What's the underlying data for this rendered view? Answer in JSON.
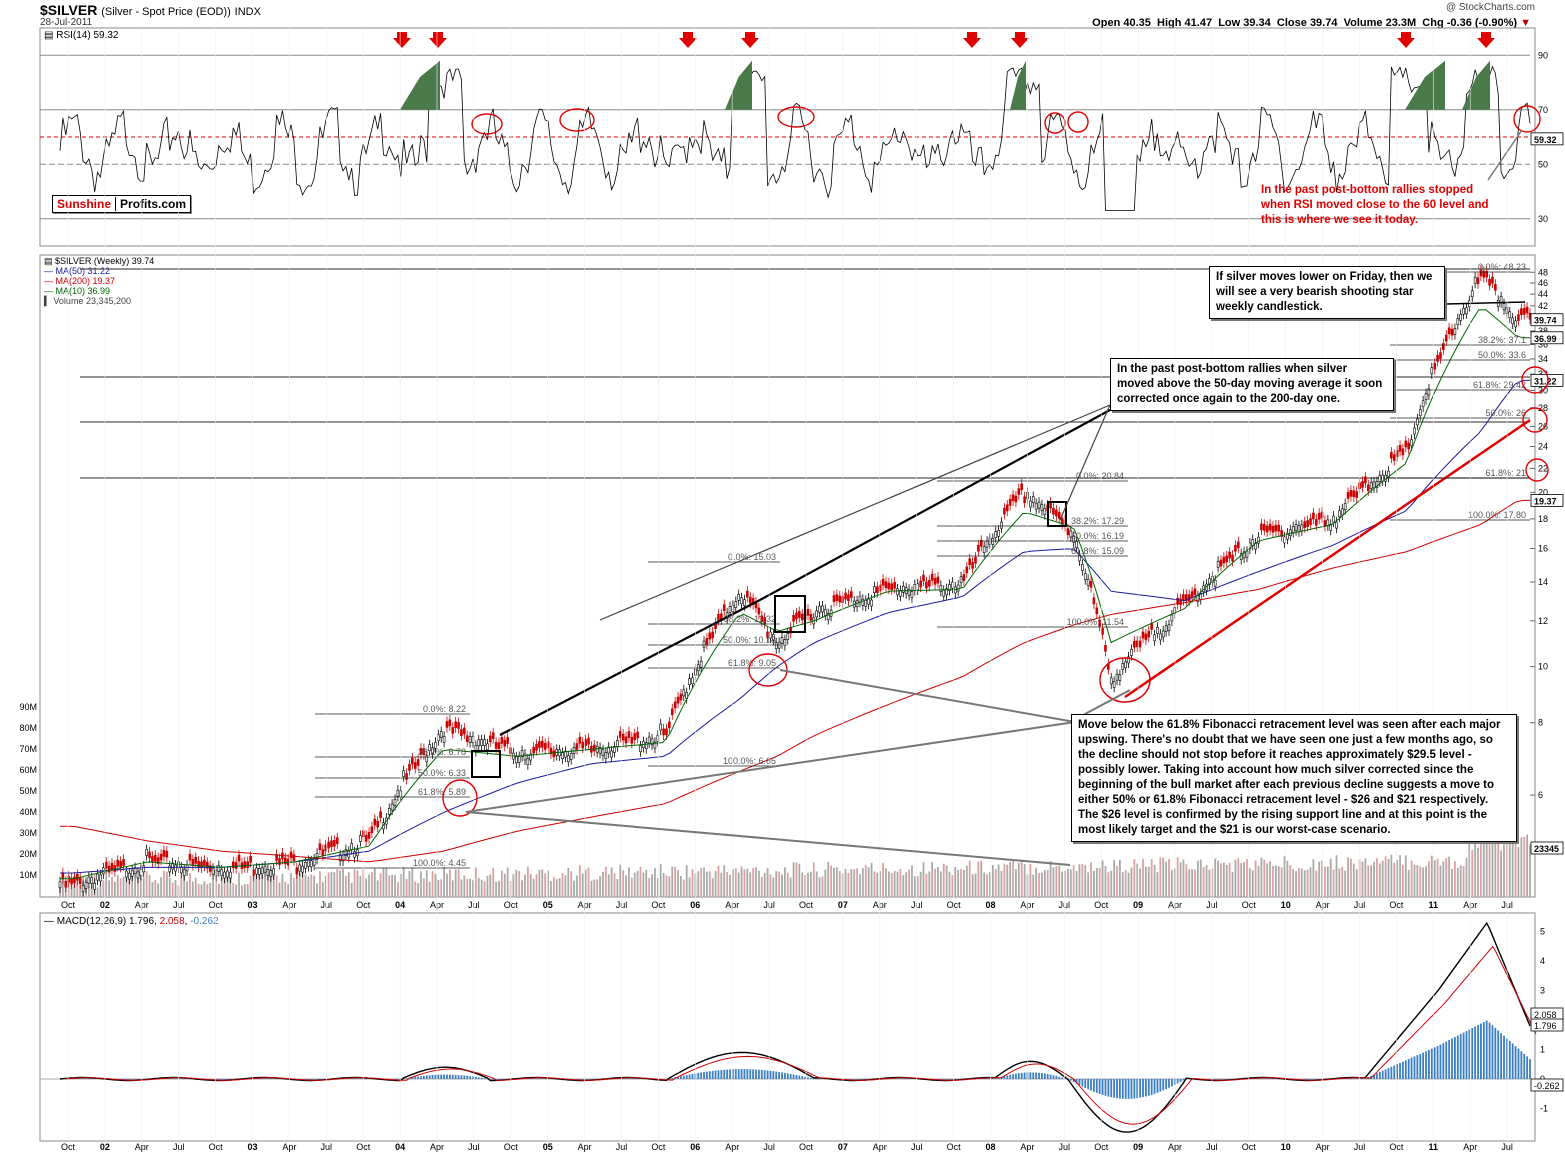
{
  "header": {
    "symbol": "$SILVER",
    "symbol_desc": "(Silver - Spot Price (EOD))",
    "exchange": "INDX",
    "date": "28-Jul-2011",
    "credit": "@ StockCharts.com",
    "open_label": "Open",
    "open": "40.35",
    "high_label": "High",
    "high": "41.47",
    "low_label": "Low",
    "low": "39.34",
    "close_label": "Close",
    "close": "39.74",
    "volume_label": "Volume",
    "volume": "23.3M",
    "chg_label": "Chg",
    "chg": "-0.36 (-0.90%)",
    "chg_icon": "down-triangle-icon"
  },
  "rsi_panel": {
    "label": "RSI(14) 59.32",
    "current_value": "59.32",
    "ticks": [
      "90",
      "70",
      "50",
      "30"
    ]
  },
  "logo": {
    "part1": "Sunshine",
    "part2": "Profits.com"
  },
  "price_panel": {
    "legend": [
      {
        "text": "$SILVER (Weekly) 39.74",
        "color": "#000000"
      },
      {
        "text": "MA(50) 31.22",
        "color": "#1a1a9c"
      },
      {
        "text": "MA(200) 19.37",
        "color": "#cc0000"
      },
      {
        "text": "MA(10) 36.99",
        "color": "#006600"
      },
      {
        "text": "Volume 23,345,200",
        "color": "#444444"
      }
    ],
    "right_ticks": [
      "48",
      "46",
      "44",
      "42",
      "40",
      "38",
      "36",
      "34",
      "32",
      "30",
      "28",
      "26",
      "24",
      "22",
      "20",
      "18",
      "16",
      "14",
      "12",
      "10",
      "8",
      "6"
    ],
    "right_value_labels": [
      "39.74",
      "36.99",
      "31.22",
      "19.37",
      "23345"
    ],
    "volume_ticks": [
      "90M",
      "80M",
      "70M",
      "60M",
      "50M",
      "40M",
      "30M",
      "20M",
      "10M"
    ],
    "fib_labels": [
      "0.0%: 8.22",
      "38.2%: 6.78",
      "50.0%: 6.33",
      "61.8%: 5.89",
      "100.0%: 4.45",
      "0.0%: 15.03",
      "38.2%: 11.32",
      "50.0%: 10.18",
      "61.8%: 9.05",
      "100.0%: 6.65",
      "0.0%: 20.84",
      "38.2%: 17.29",
      "50.0%: 16.19",
      "61.8%: 15.09",
      "100.0%: 11.54",
      "0.0%: 48.23",
      "38.2%: 37.1",
      "50.0%: 33.6",
      "61.8%: 29.42",
      "50.0%: 26",
      "61.8%: 21",
      "100.0%: 17.80"
    ]
  },
  "macd_panel": {
    "label": "MACD(12,26,9)",
    "macd": "1.796",
    "signal": "2.058",
    "hist": "-0.262",
    "ticks": [
      "5",
      "4",
      "3",
      "2",
      "1",
      "0",
      "-1"
    ]
  },
  "x_axis": [
    "Oct",
    "02",
    "Apr",
    "Jul",
    "Oct",
    "03",
    "Apr",
    "Jul",
    "Oct",
    "04",
    "Apr",
    "Jul",
    "Oct",
    "05",
    "Apr",
    "Jul",
    "Oct",
    "06",
    "Apr",
    "Jul",
    "Oct",
    "07",
    "Apr",
    "Jul",
    "Oct",
    "08",
    "Apr",
    "Jul",
    "Oct",
    "09",
    "Apr",
    "Jul",
    "Oct",
    "10",
    "Apr",
    "Jul",
    "Oct",
    "11",
    "Apr",
    "Jul"
  ],
  "annotations": {
    "rsi_note": "In the past post-bottom rallies stopped when RSI moved close to the 60 level and this is where we see it today.",
    "friday_note": "If silver moves lower on Friday, then we will see a very bearish shooting star weekly candlestick.",
    "ma_note": "In the past post-bottom rallies when silver moved above the 50-day moving average it soon corrected once again to the 200-day one.",
    "fib_note": "Move below the 61.8% Fibonacci retracement level was seen after each major upswing. There's no doubt that we have seen one just a few months ago, so the decline should not stop before it reaches approximately $29.5 level - possibly lower. Taking into account how much silver corrected since the beginning of the bull market after each previous decline suggests a move to either 50% or 61.8% Fibonacci retracement level - $26 and $21 respectively. The $26 level is confirmed by the rising support line and at this point is the most likely target and the $21 is our worst-case scenario."
  },
  "colors": {
    "price_up": "#000000",
    "price_down": "#cc0000",
    "ma50": "#1a1a9c",
    "ma200": "#cc0000",
    "ma10": "#006600",
    "rsi_fill": "#4a7a4a",
    "macd_hist": "#3b7fc4",
    "annotation_red": "#e00000"
  },
  "chart_data": {
    "type": "line",
    "title": "$SILVER (Silver - Spot Price (EOD)) INDX",
    "x": [
      "2001-10",
      "2002-04",
      "2002-10",
      "2003-04",
      "2003-10",
      "2004-04",
      "2004-10",
      "2005-04",
      "2005-10",
      "2006-04",
      "2006-07",
      "2006-10",
      "2007-04",
      "2007-10",
      "2008-03",
      "2008-07",
      "2008-10",
      "2009-04",
      "2009-10",
      "2010-04",
      "2010-10",
      "2011-04",
      "2011-07"
    ],
    "series": [
      {
        "name": "$SILVER (Weekly)",
        "values": [
          4.2,
          4.6,
          4.5,
          4.6,
          5.0,
          7.8,
          7.1,
          7.2,
          7.6,
          13.5,
          11.0,
          12.5,
          13.6,
          13.9,
          20.0,
          17.0,
          9.5,
          12.8,
          16.8,
          18.0,
          23.5,
          47.0,
          39.74
        ]
      },
      {
        "name": "MA(50)",
        "values": [
          4.4,
          4.5,
          4.5,
          4.6,
          4.8,
          5.6,
          6.3,
          6.8,
          7.0,
          8.8,
          10.0,
          11.0,
          12.4,
          13.2,
          15.8,
          16.0,
          13.5,
          13.0,
          14.6,
          16.2,
          18.6,
          25.5,
          31.22
        ]
      },
      {
        "name": "MA(200)",
        "values": [
          5.3,
          5.0,
          4.8,
          4.7,
          4.6,
          4.8,
          5.2,
          5.5,
          5.8,
          6.6,
          7.0,
          7.6,
          8.6,
          9.6,
          11.0,
          11.8,
          12.3,
          12.9,
          13.6,
          14.8,
          15.8,
          17.6,
          19.37
        ]
      },
      {
        "name": "MA(10)",
        "values": [
          4.3,
          4.6,
          4.5,
          4.6,
          4.9,
          7.2,
          7.0,
          7.2,
          7.4,
          12.4,
          11.5,
          12.0,
          13.5,
          13.6,
          18.5,
          17.4,
          11.0,
          12.6,
          16.5,
          17.6,
          22.5,
          42.0,
          36.99
        ]
      }
    ],
    "ylim": [
      4,
      50
    ],
    "yscale": "log"
  }
}
